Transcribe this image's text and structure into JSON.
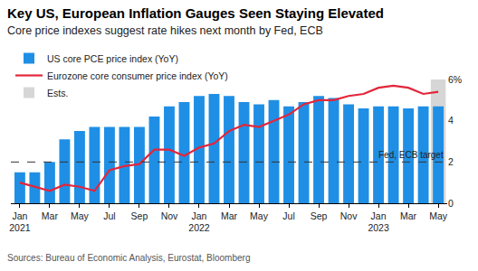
{
  "chart_data": {
    "type": "bar",
    "title": "Key US, European Inflation Gauges Seen Staying Elevated",
    "subtitle": "Core price indexes suggest rate hikes next month by Fed, ECB",
    "source": "Sources: Bureau of Economic Analysis, Eurostat, Bloomberg",
    "categories": [
      "Jan\n2021",
      null,
      "Mar",
      null,
      "May",
      null,
      "Jul",
      null,
      "Sep",
      null,
      "Nov",
      null,
      "Jan\n2022",
      null,
      "Mar",
      null,
      "May",
      null,
      "Jul",
      null,
      "Sep",
      null,
      "Nov",
      null,
      "Jan\n2023",
      null,
      "Mar",
      null,
      "May"
    ],
    "series": [
      {
        "name": "US core PCE price index (YoY)",
        "type": "bar",
        "color": "#1f8fe5",
        "values": [
          1.5,
          1.5,
          2.0,
          3.1,
          3.5,
          3.7,
          3.7,
          3.7,
          3.7,
          4.2,
          4.7,
          4.9,
          5.2,
          5.3,
          5.2,
          4.9,
          4.8,
          5.0,
          4.7,
          4.9,
          5.2,
          5.1,
          4.8,
          4.6,
          4.7,
          4.7,
          4.6,
          4.7,
          4.7
        ]
      },
      {
        "name": "Eurozone core consumer price index (YoY)",
        "type": "line",
        "color": "#e3263a",
        "values": [
          1.0,
          0.8,
          0.6,
          0.9,
          0.8,
          0.6,
          1.6,
          1.8,
          1.9,
          2.6,
          2.6,
          2.3,
          2.7,
          2.9,
          3.5,
          3.8,
          3.7,
          4.0,
          4.3,
          4.8,
          5.0,
          5.0,
          5.2,
          5.3,
          5.6,
          5.7,
          5.6,
          5.3,
          5.4
        ]
      },
      {
        "name": "Ests.",
        "type": "bar",
        "color": "#d6d6d6",
        "values": [
          null,
          null,
          null,
          null,
          null,
          null,
          null,
          null,
          null,
          null,
          null,
          null,
          null,
          null,
          null,
          null,
          null,
          null,
          null,
          null,
          null,
          null,
          null,
          null,
          null,
          null,
          null,
          null,
          6
        ]
      }
    ],
    "target_line": {
      "value": 2,
      "label": "Fed, ECB target",
      "line_style": "dashed"
    },
    "ylim": [
      0,
      6
    ],
    "yticks": [
      0,
      2,
      4,
      {
        "value": 6,
        "label": "6%"
      }
    ],
    "grid": false,
    "legend": "top left"
  }
}
